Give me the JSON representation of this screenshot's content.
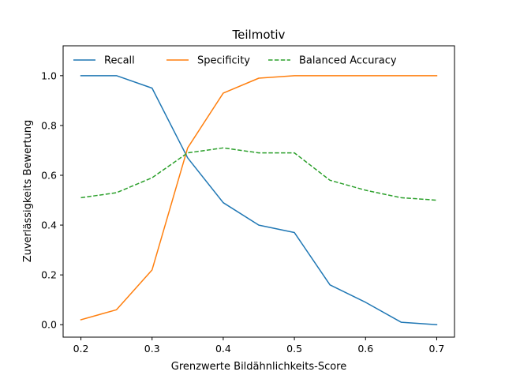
{
  "chart_data": {
    "type": "line",
    "title": "Teilmotiv",
    "xlabel": "Grenzwerte Bildähnlichkeits-Score",
    "ylabel": "Zuverlässigkeits Bewertung",
    "x": [
      0.2,
      0.25,
      0.3,
      0.35,
      0.4,
      0.45,
      0.5,
      0.55,
      0.6,
      0.65,
      0.7
    ],
    "xlim": [
      0.175,
      0.725
    ],
    "ylim": [
      -0.05,
      1.12
    ],
    "xticks": [
      0.2,
      0.3,
      0.4,
      0.5,
      0.6,
      0.7
    ],
    "xtick_labels": [
      "0.2",
      "0.3",
      "0.4",
      "0.5",
      "0.6",
      "0.7"
    ],
    "yticks": [
      0.0,
      0.2,
      0.4,
      0.6,
      0.8,
      1.0
    ],
    "ytick_labels": [
      "0.0",
      "0.2",
      "0.4",
      "0.6",
      "0.8",
      "1.0"
    ],
    "grid": false,
    "legend_position": "top",
    "series": [
      {
        "name": "Recall",
        "color": "#1f77b4",
        "dash": "solid",
        "values": [
          1.0,
          1.0,
          0.95,
          0.67,
          0.49,
          0.4,
          0.37,
          0.16,
          0.09,
          0.01,
          0.0
        ]
      },
      {
        "name": "Specificity",
        "color": "#ff7f0e",
        "dash": "solid",
        "values": [
          0.02,
          0.06,
          0.22,
          0.71,
          0.93,
          0.99,
          1.0,
          1.0,
          1.0,
          1.0,
          1.0
        ]
      },
      {
        "name": "Balanced Accuracy",
        "color": "#2ca02c",
        "dash": "dashed",
        "values": [
          0.51,
          0.53,
          0.59,
          0.69,
          0.71,
          0.69,
          0.69,
          0.58,
          0.54,
          0.51,
          0.5
        ]
      }
    ]
  }
}
